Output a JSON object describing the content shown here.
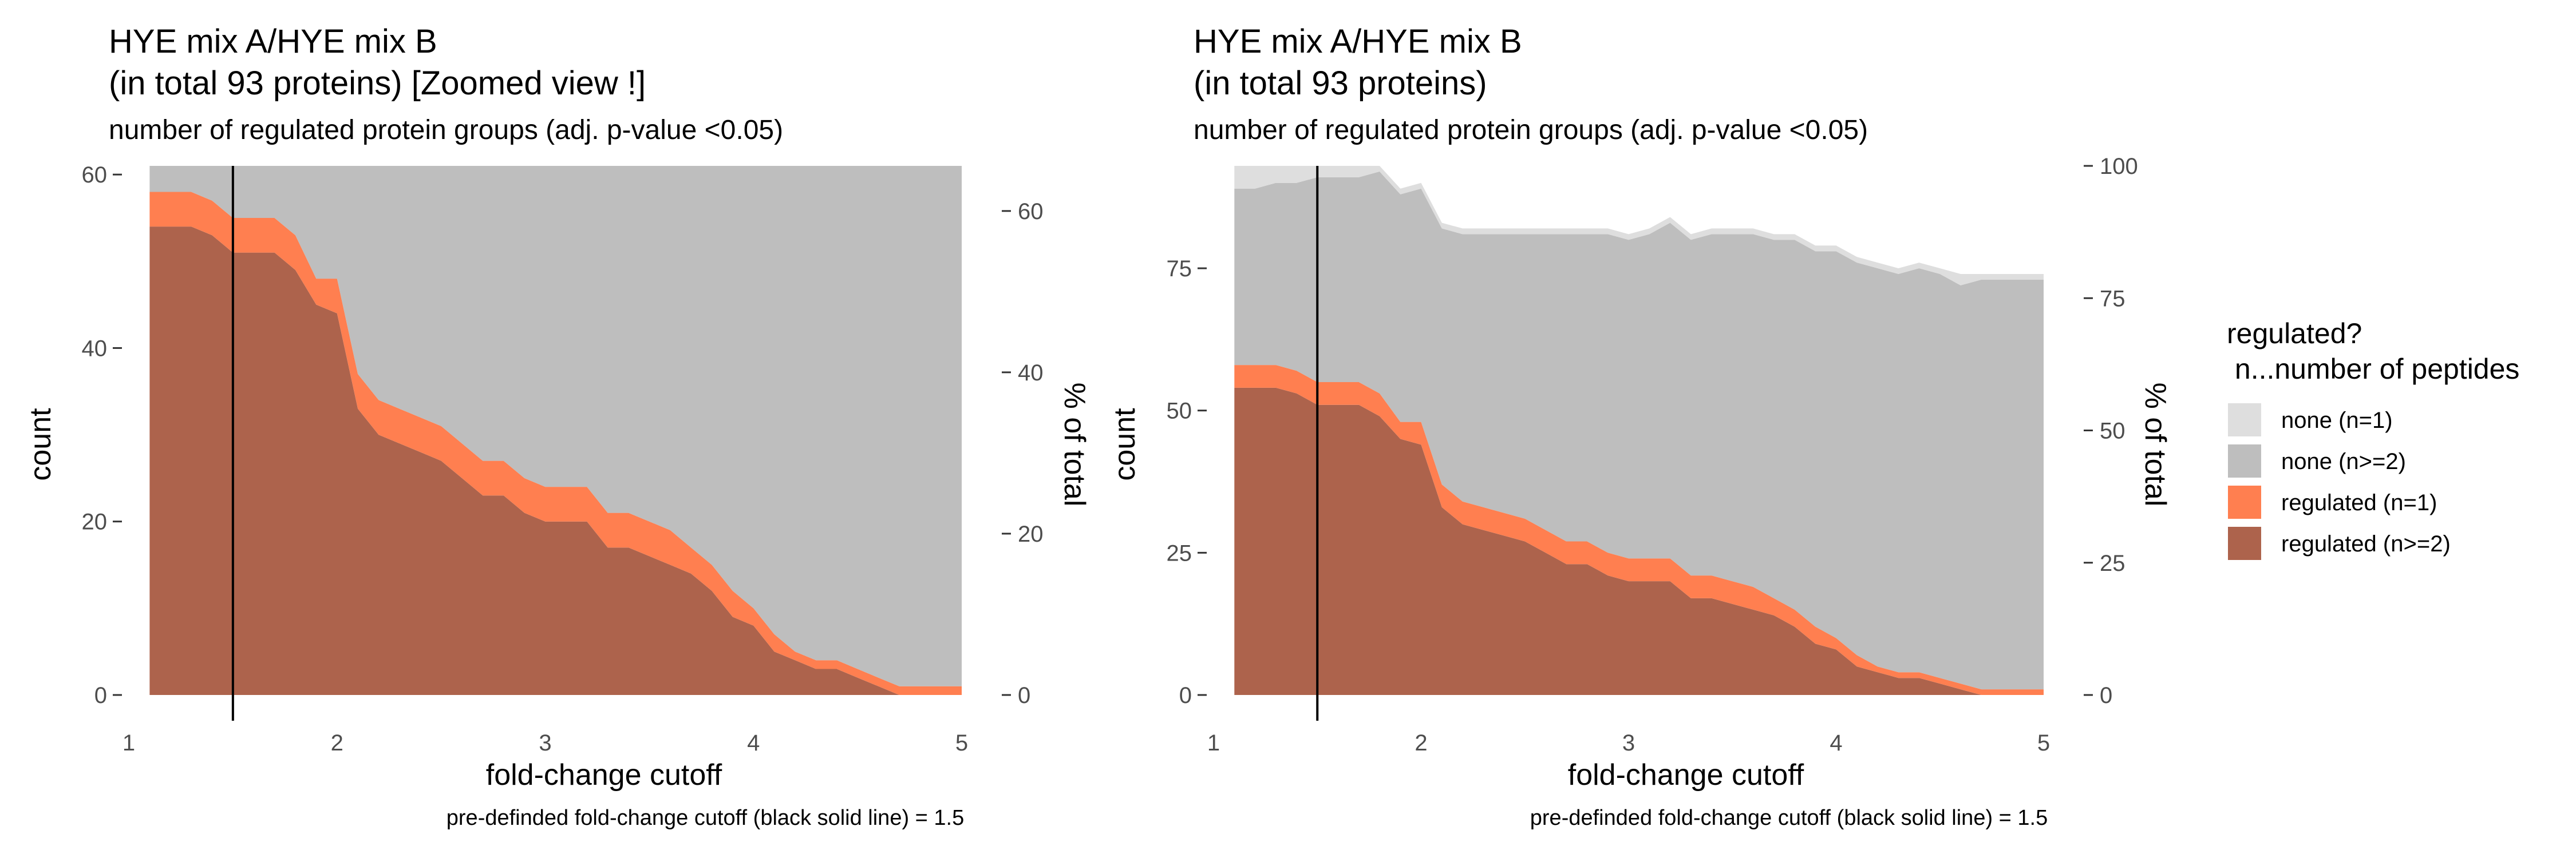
{
  "chart_data": [
    {
      "type": "area",
      "title": "HYE mix A/HYE mix B\n(in total 93 proteins)  [Zoomed view !]",
      "subtitle": "number of regulated protein groups (adj. p-value <0.05)",
      "xlabel": "fold-change cutoff",
      "ylabel": "count",
      "ylabel_right": "% of total",
      "caption": "pre-definded fold-change cutoff (black solid line) = 1.5",
      "xlim": [
        1,
        5
      ],
      "ylim": [
        0,
        61
      ],
      "x_ticks": [
        1,
        2,
        3,
        4,
        5
      ],
      "y_ticks": [
        0,
        20,
        40,
        60
      ],
      "y_right_ticks": [
        0,
        20,
        40,
        60
      ],
      "cutoff_line": 1.5,
      "total_proteins": 93,
      "x": [
        1.1,
        1.2,
        1.3,
        1.4,
        1.5,
        1.6,
        1.7,
        1.8,
        1.9,
        2.0,
        2.1,
        2.2,
        2.3,
        2.4,
        2.5,
        2.6,
        2.7,
        2.8,
        2.9,
        3.0,
        3.1,
        3.2,
        3.3,
        3.4,
        3.5,
        3.6,
        3.7,
        3.8,
        3.9,
        4.0,
        4.1,
        4.2,
        4.3,
        4.4,
        4.5,
        4.6,
        4.7,
        4.8,
        4.9,
        5.0
      ],
      "series": [
        {
          "name": "none (n=1)",
          "values": [
            4,
            4,
            3,
            3,
            2,
            2,
            2,
            1,
            1,
            1,
            1,
            1,
            1,
            1,
            1,
            1,
            1,
            1,
            1,
            1,
            1,
            1,
            1,
            1,
            1,
            1,
            1,
            1,
            1,
            1,
            1,
            1,
            1,
            1,
            1,
            2,
            1,
            1,
            1,
            1
          ]
        },
        {
          "name": "none (n>=2)",
          "values": [
            31,
            31,
            32,
            33,
            36,
            36,
            36,
            39,
            40,
            41,
            45,
            47,
            48,
            49,
            50,
            52,
            54,
            54,
            56,
            56,
            57,
            59,
            59,
            60,
            61,
            62,
            63,
            65,
            66,
            68,
            69,
            70,
            70,
            71,
            71,
            70,
            72,
            72,
            72,
            72
          ]
        },
        {
          "name": "regulated (n=1)",
          "values": [
            4,
            4,
            4,
            4,
            4,
            4,
            4,
            4,
            3,
            4,
            4,
            4,
            4,
            4,
            4,
            4,
            4,
            4,
            4,
            4,
            4,
            4,
            4,
            4,
            4,
            4,
            3,
            3,
            3,
            2,
            2,
            1,
            1,
            1,
            1,
            1,
            1,
            1,
            1,
            1
          ]
        },
        {
          "name": "regulated (n>=2)",
          "values": [
            54,
            54,
            54,
            53,
            51,
            51,
            51,
            49,
            45,
            44,
            33,
            30,
            29,
            28,
            27,
            25,
            23,
            23,
            21,
            20,
            20,
            20,
            17,
            17,
            16,
            15,
            14,
            12,
            9,
            8,
            5,
            4,
            3,
            3,
            2,
            1,
            0,
            0,
            0,
            0
          ]
        }
      ]
    },
    {
      "type": "area",
      "title": "HYE mix A/HYE mix B\n(in total 93 proteins)",
      "subtitle": "number of regulated protein groups (adj. p-value <0.05)",
      "xlabel": "fold-change cutoff",
      "ylabel": "count",
      "ylabel_right": "% of total",
      "caption": "pre-definded fold-change cutoff (black solid line) = 1.5",
      "xlim": [
        1,
        5
      ],
      "ylim": [
        0,
        93
      ],
      "x_ticks": [
        1,
        2,
        3,
        4,
        5
      ],
      "y_ticks": [
        0,
        25,
        50,
        75
      ],
      "y_right_ticks": [
        0,
        25,
        50,
        75,
        100
      ],
      "cutoff_line": 1.5,
      "total_proteins": 93,
      "x": [
        1.1,
        1.2,
        1.3,
        1.4,
        1.5,
        1.6,
        1.7,
        1.8,
        1.9,
        2.0,
        2.1,
        2.2,
        2.3,
        2.4,
        2.5,
        2.6,
        2.7,
        2.8,
        2.9,
        3.0,
        3.1,
        3.2,
        3.3,
        3.4,
        3.5,
        3.6,
        3.7,
        3.8,
        3.9,
        4.0,
        4.1,
        4.2,
        4.3,
        4.4,
        4.5,
        4.6,
        4.7,
        4.8,
        4.9,
        5.0
      ],
      "series": [
        {
          "name": "none (n=1)",
          "values": [
            4,
            4,
            3,
            3,
            2,
            2,
            2,
            1,
            1,
            1,
            1,
            1,
            1,
            1,
            1,
            1,
            1,
            1,
            1,
            1,
            1,
            1,
            1,
            1,
            1,
            1,
            1,
            1,
            1,
            1,
            1,
            1,
            1,
            1,
            1,
            2,
            1,
            1,
            1,
            1
          ]
        },
        {
          "name": "none (n>=2)",
          "values": [
            31,
            31,
            32,
            33,
            36,
            36,
            36,
            39,
            40,
            41,
            45,
            47,
            48,
            49,
            50,
            52,
            54,
            54,
            56,
            56,
            57,
            59,
            59,
            60,
            61,
            62,
            63,
            65,
            66,
            68,
            69,
            70,
            70,
            71,
            71,
            70,
            72,
            72,
            72,
            72
          ]
        },
        {
          "name": "regulated (n=1)",
          "values": [
            4,
            4,
            4,
            4,
            4,
            4,
            4,
            4,
            3,
            4,
            4,
            4,
            4,
            4,
            4,
            4,
            4,
            4,
            4,
            4,
            4,
            4,
            4,
            4,
            4,
            4,
            3,
            3,
            3,
            2,
            2,
            1,
            1,
            1,
            1,
            1,
            1,
            1,
            1,
            1
          ]
        },
        {
          "name": "regulated (n>=2)",
          "values": [
            54,
            54,
            54,
            53,
            51,
            51,
            51,
            49,
            45,
            44,
            33,
            30,
            29,
            28,
            27,
            25,
            23,
            23,
            21,
            20,
            20,
            20,
            17,
            17,
            16,
            15,
            14,
            12,
            9,
            8,
            5,
            4,
            3,
            3,
            2,
            1,
            0,
            0,
            0,
            0
          ]
        }
      ]
    }
  ],
  "legend": {
    "title_line1": "regulated?",
    "title_line2": " n...number of peptides",
    "items": [
      {
        "label": "none (n=1)",
        "color": "#dedede"
      },
      {
        "label": "none (n>=2)",
        "color": "#bebebe"
      },
      {
        "label": "regulated (n=1)",
        "color": "#ff7f50"
      },
      {
        "label": "regulated (n>=2)",
        "color": "#ad634c"
      }
    ]
  }
}
